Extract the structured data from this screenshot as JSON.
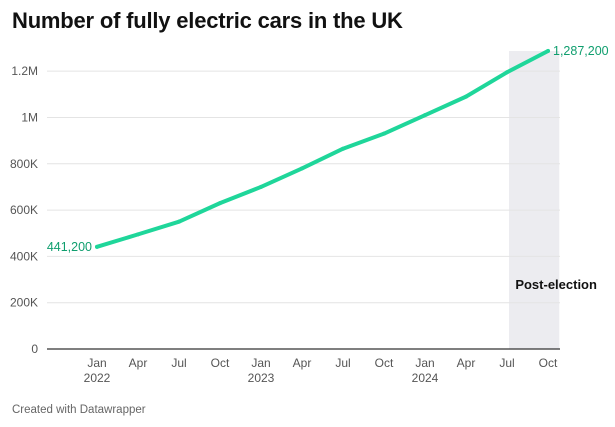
{
  "chart_data": {
    "type": "line",
    "title": "Number of fully electric cars in the UK",
    "footer": "Created with Datawrapper",
    "xlabel": "",
    "ylabel": "",
    "ylim": [
      0,
      1300000
    ],
    "yticks": [
      {
        "value": 0,
        "label": "0"
      },
      {
        "value": 200000,
        "label": "200K"
      },
      {
        "value": 400000,
        "label": "400K"
      },
      {
        "value": 600000,
        "label": "600K"
      },
      {
        "value": 800000,
        "label": "800K"
      },
      {
        "value": 1000000,
        "label": "1M"
      },
      {
        "value": 1200000,
        "label": "1.2M"
      }
    ],
    "xticks": [
      {
        "index": 0,
        "label": "Jan",
        "year": "2022"
      },
      {
        "index": 1,
        "label": "Apr"
      },
      {
        "index": 2,
        "label": "Jul"
      },
      {
        "index": 3,
        "label": "Oct"
      },
      {
        "index": 4,
        "label": "Jan",
        "year": "2023"
      },
      {
        "index": 5,
        "label": "Apr"
      },
      {
        "index": 6,
        "label": "Jul"
      },
      {
        "index": 7,
        "label": "Oct"
      },
      {
        "index": 8,
        "label": "Jan",
        "year": "2024"
      },
      {
        "index": 9,
        "label": "Apr"
      },
      {
        "index": 10,
        "label": "Jul"
      },
      {
        "index": 11,
        "label": "Oct"
      }
    ],
    "series": [
      {
        "name": "Fully electric cars",
        "color": "#1fd69a",
        "x": [
          0,
          1,
          2,
          3,
          4,
          5,
          6,
          7,
          8,
          9,
          10,
          11
        ],
        "values": [
          441200,
          495000,
          550000,
          630000,
          700000,
          780000,
          865000,
          930000,
          1010000,
          1090000,
          1195000,
          1287200
        ]
      }
    ],
    "start_label": "441,200",
    "end_label": "1,287,200",
    "shaded_region": {
      "from": 10,
      "to": 11.25,
      "label": "Post-election",
      "color": "#ececf0"
    },
    "label_color": "#0f9e6e"
  }
}
